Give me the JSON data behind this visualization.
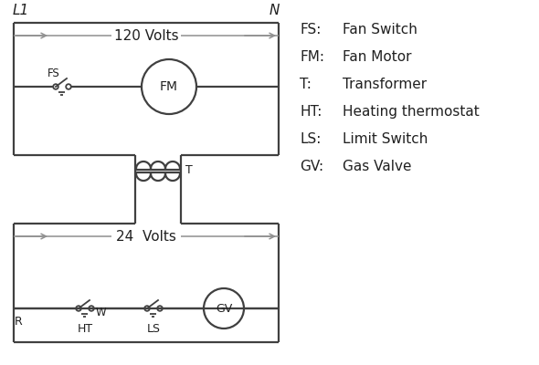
{
  "bg_color": "#ffffff",
  "line_color": "#404040",
  "arrow_color": "#909090",
  "text_color": "#202020",
  "legend_items": [
    [
      "FS:",
      "Fan Switch"
    ],
    [
      "FM:",
      "Fan Motor"
    ],
    [
      "T:",
      "Transformer"
    ],
    [
      "HT:",
      "Heating thermostat"
    ],
    [
      "LS:",
      "Limit Switch"
    ],
    [
      "GV:",
      "Gas Valve"
    ]
  ],
  "L1_label": "L1",
  "N_label": "N",
  "v120_label": "120 Volts",
  "v24_label": "24  Volts",
  "T_label": "T",
  "R_label": "R",
  "W_label": "W",
  "HT_label": "HT",
  "LS_label": "LS",
  "FS_label": "FS",
  "FM_label": "FM",
  "GV_label": "GV"
}
